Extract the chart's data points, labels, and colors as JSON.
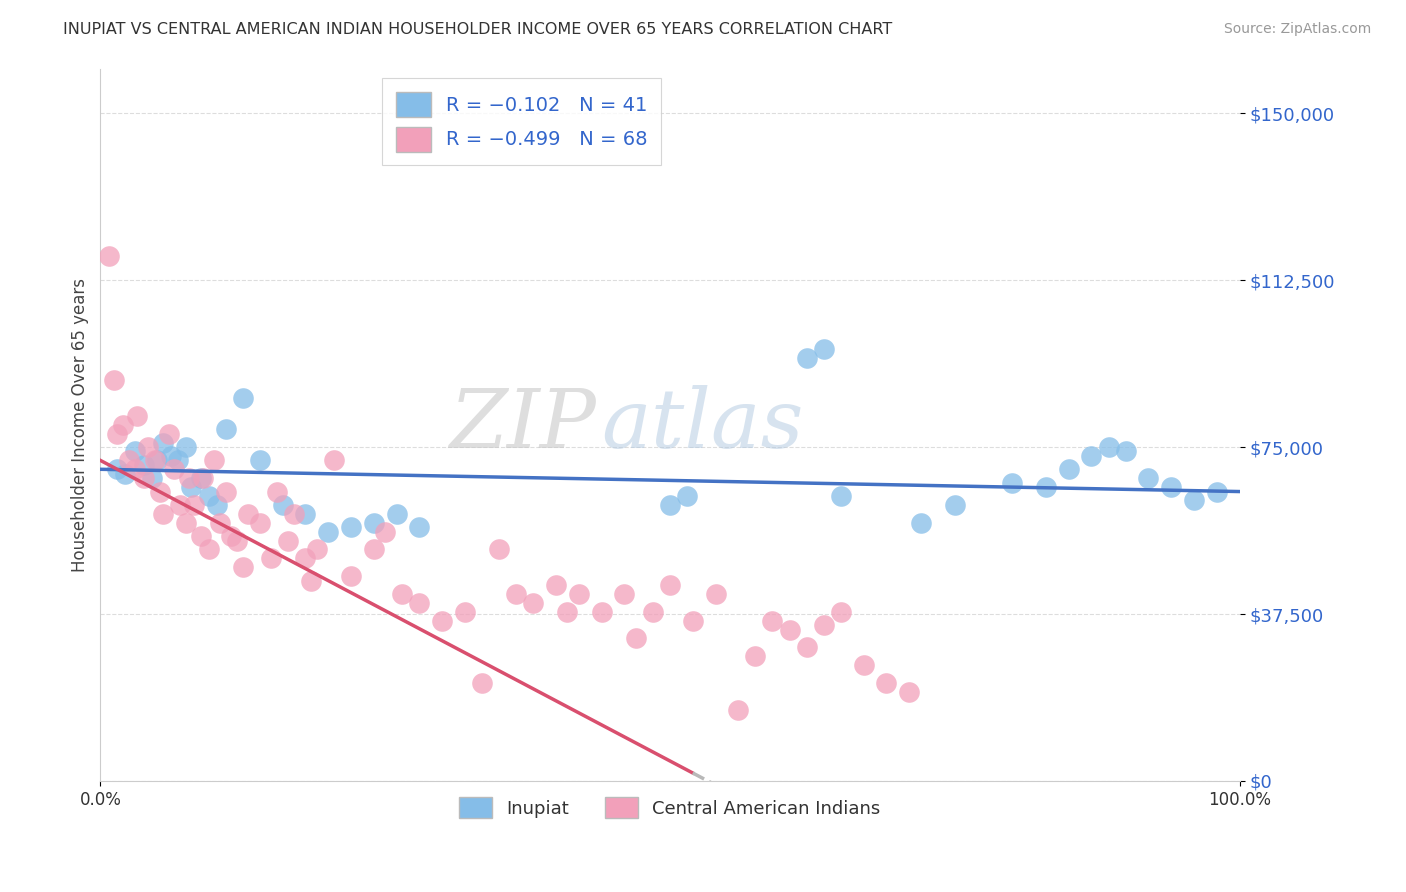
{
  "title": "INUPIAT VS CENTRAL AMERICAN INDIAN HOUSEHOLDER INCOME OVER 65 YEARS CORRELATION CHART",
  "source": "Source: ZipAtlas.com",
  "ylabel": "Householder Income Over 65 years",
  "legend_inupiat": "Inupiat",
  "legend_central": "Central American Indians",
  "R_inupiat": -0.102,
  "N_inupiat": 41,
  "R_central": -0.499,
  "N_central": 68,
  "xmin": 0.0,
  "xmax": 100.0,
  "ymin": 0,
  "ymax": 160000,
  "yticks": [
    0,
    37500,
    75000,
    112500,
    150000
  ],
  "ytick_labels": [
    "$0",
    "$37,500",
    "$75,000",
    "$112,500",
    "$150,000"
  ],
  "xtick_labels": [
    "0.0%",
    "100.0%"
  ],
  "color_inupiat": "#85bde8",
  "color_central": "#f2a0ba",
  "line_color_inupiat": "#4472c4",
  "line_color_central": "#d94f6e",
  "line_color_dashed": "#b8b8b8",
  "watermark_zip": "ZIP",
  "watermark_atlas": "atlas",
  "inupiat_x": [
    1.5,
    2.2,
    3.0,
    3.8,
    4.5,
    5.0,
    5.5,
    6.2,
    6.8,
    7.5,
    8.0,
    8.8,
    9.5,
    10.2,
    11.0,
    12.5,
    14.0,
    16.0,
    18.0,
    20.0,
    22.0,
    24.0,
    26.0,
    28.0,
    50.0,
    51.5,
    62.0,
    63.5,
    65.0,
    72.0,
    75.0,
    80.0,
    83.0,
    85.0,
    87.0,
    88.5,
    90.0,
    92.0,
    94.0,
    96.0,
    98.0
  ],
  "inupiat_y": [
    70000,
    69000,
    74000,
    71000,
    68000,
    72000,
    76000,
    73000,
    72000,
    75000,
    66000,
    68000,
    64000,
    62000,
    79000,
    86000,
    72000,
    62000,
    60000,
    56000,
    57000,
    58000,
    60000,
    57000,
    62000,
    64000,
    95000,
    97000,
    64000,
    58000,
    62000,
    67000,
    66000,
    70000,
    73000,
    75000,
    74000,
    68000,
    66000,
    63000,
    65000
  ],
  "central_x": [
    0.8,
    1.2,
    1.5,
    2.0,
    2.5,
    3.0,
    3.2,
    3.8,
    4.2,
    4.8,
    5.2,
    5.5,
    6.0,
    6.5,
    7.0,
    7.5,
    7.8,
    8.2,
    8.8,
    9.0,
    9.5,
    10.0,
    10.5,
    11.0,
    11.5,
    12.0,
    12.5,
    13.0,
    14.0,
    15.0,
    15.5,
    16.5,
    17.0,
    18.0,
    18.5,
    19.0,
    20.5,
    22.0,
    24.0,
    25.0,
    26.5,
    28.0,
    30.0,
    32.0,
    33.5,
    35.0,
    36.5,
    38.0,
    40.0,
    41.0,
    42.0,
    44.0,
    46.0,
    47.0,
    48.5,
    50.0,
    52.0,
    54.0,
    56.0,
    57.5,
    59.0,
    60.5,
    62.0,
    63.5,
    65.0,
    67.0,
    69.0,
    71.0
  ],
  "central_y": [
    118000,
    90000,
    78000,
    80000,
    72000,
    70000,
    82000,
    68000,
    75000,
    72000,
    65000,
    60000,
    78000,
    70000,
    62000,
    58000,
    68000,
    62000,
    55000,
    68000,
    52000,
    72000,
    58000,
    65000,
    55000,
    54000,
    48000,
    60000,
    58000,
    50000,
    65000,
    54000,
    60000,
    50000,
    45000,
    52000,
    72000,
    46000,
    52000,
    56000,
    42000,
    40000,
    36000,
    38000,
    22000,
    52000,
    42000,
    40000,
    44000,
    38000,
    42000,
    38000,
    42000,
    32000,
    38000,
    44000,
    36000,
    42000,
    16000,
    28000,
    36000,
    34000,
    30000,
    35000,
    38000,
    26000,
    22000,
    20000
  ]
}
